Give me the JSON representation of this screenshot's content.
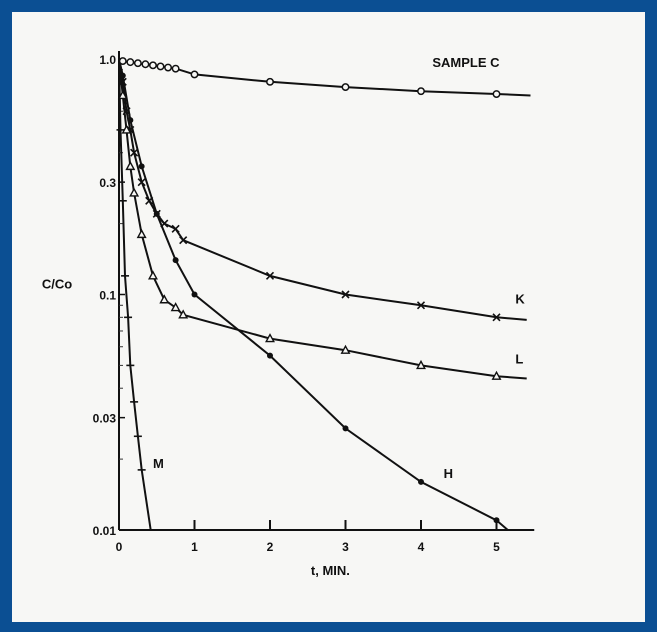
{
  "chart_data": {
    "type": "line",
    "ylabel": "C/Co",
    "xlabel": "t, MIN.",
    "yscale": "log",
    "xlim": [
      0,
      5.5
    ],
    "ylim": [
      0.01,
      1.0
    ],
    "x_ticks": [
      "0",
      "1",
      "2",
      "3",
      "4",
      "5"
    ],
    "y_ticks": [
      {
        "value": 1.0,
        "label": "1.0"
      },
      {
        "value": 0.3,
        "label": "0.3"
      },
      {
        "value": 0.1,
        "label": "0.1"
      },
      {
        "value": 0.03,
        "label": "0.03"
      },
      {
        "value": 0.01,
        "label": "0.01"
      }
    ],
    "grid": false,
    "series": [
      {
        "name": "SAMPLE C",
        "marker": "circle",
        "x": [
          0.05,
          0.15,
          0.25,
          0.35,
          0.45,
          0.55,
          0.65,
          0.75,
          1.0,
          2.0,
          3.0,
          4.0,
          5.0
        ],
        "y": [
          0.98,
          0.97,
          0.96,
          0.95,
          0.94,
          0.93,
          0.92,
          0.91,
          0.86,
          0.8,
          0.76,
          0.73,
          0.71
        ]
      },
      {
        "name": "K",
        "marker": "x",
        "x": [
          0.05,
          0.1,
          0.15,
          0.2,
          0.3,
          0.4,
          0.5,
          0.6,
          0.75,
          0.85,
          2.0,
          3.0,
          4.0,
          5.0
        ],
        "y": [
          0.8,
          0.6,
          0.5,
          0.4,
          0.3,
          0.25,
          0.22,
          0.2,
          0.19,
          0.17,
          0.12,
          0.1,
          0.09,
          0.08
        ]
      },
      {
        "name": "L",
        "marker": "triangle",
        "x": [
          0.05,
          0.1,
          0.15,
          0.2,
          0.3,
          0.45,
          0.6,
          0.75,
          0.85,
          2.0,
          3.0,
          4.0,
          5.0
        ],
        "y": [
          0.7,
          0.5,
          0.35,
          0.27,
          0.18,
          0.12,
          0.095,
          0.088,
          0.082,
          0.065,
          0.058,
          0.05,
          0.045
        ]
      },
      {
        "name": "H",
        "marker": "dot",
        "x": [
          0.05,
          0.15,
          0.3,
          0.5,
          0.75,
          1.0,
          2.0,
          3.0,
          4.0,
          5.0
        ],
        "y": [
          0.85,
          0.55,
          0.35,
          0.22,
          0.14,
          0.1,
          0.055,
          0.027,
          0.016,
          0.011
        ]
      },
      {
        "name": "M",
        "marker": "dash",
        "x": [
          0.02,
          0.05,
          0.08,
          0.12,
          0.15,
          0.2,
          0.25,
          0.3
        ],
        "y": [
          0.5,
          0.25,
          0.12,
          0.08,
          0.05,
          0.035,
          0.025,
          0.018
        ]
      }
    ]
  }
}
